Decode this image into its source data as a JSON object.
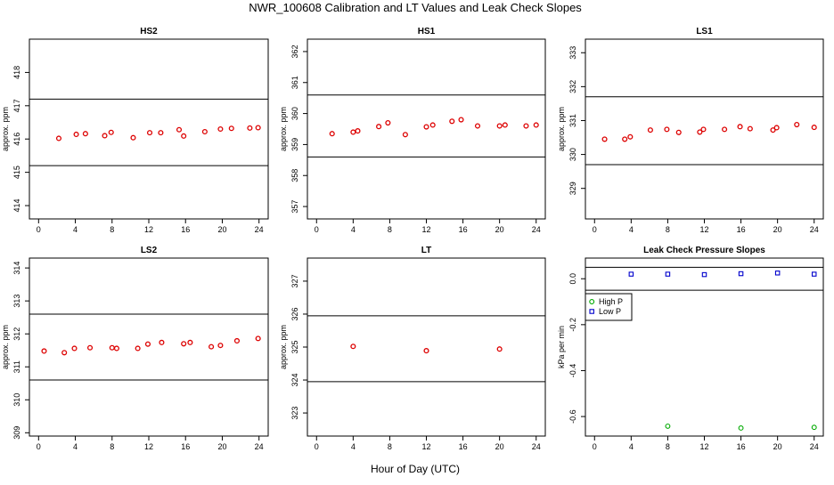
{
  "title": "NWR_100608  Calibration and LT Values and Leak Check Slopes",
  "xlabel": "Hour of Day (UTC)",
  "chart_data": [
    {
      "type": "scatter",
      "title": "HS2",
      "ylabel": "approx. ppm",
      "xlim": [
        -1,
        25
      ],
      "ylim": [
        413.6,
        419
      ],
      "xticks": [
        0,
        4,
        8,
        12,
        16,
        20,
        24
      ],
      "yticks": [
        414,
        415,
        416,
        417,
        418
      ],
      "hlines": [
        417.2,
        415.2
      ],
      "marker_color": "#dd0000",
      "x": [
        2.2,
        4.1,
        5.1,
        7.2,
        7.9,
        10.3,
        12.1,
        13.3,
        15.3,
        15.8,
        18.1,
        19.8,
        21.0,
        23.0,
        23.9
      ],
      "y": [
        416.02,
        416.14,
        416.16,
        416.1,
        416.2,
        416.04,
        416.19,
        416.19,
        416.28,
        416.09,
        416.22,
        416.3,
        416.32,
        416.33,
        416.34
      ]
    },
    {
      "type": "scatter",
      "title": "HS1",
      "ylabel": "approx. ppm",
      "xlim": [
        -1,
        25
      ],
      "ylim": [
        356.6,
        362.4
      ],
      "xticks": [
        0,
        4,
        8,
        12,
        16,
        20,
        24
      ],
      "yticks": [
        357,
        358,
        359,
        360,
        361,
        362
      ],
      "hlines": [
        360.6,
        358.6
      ],
      "marker_color": "#dd0000",
      "x": [
        1.7,
        4.0,
        4.5,
        6.8,
        7.8,
        9.7,
        12.0,
        12.7,
        14.8,
        15.8,
        17.6,
        20.0,
        20.6,
        22.9,
        24.0
      ],
      "y": [
        359.35,
        359.4,
        359.44,
        359.58,
        359.7,
        359.32,
        359.57,
        359.63,
        359.75,
        359.8,
        359.6,
        359.6,
        359.63,
        359.6,
        359.63
      ]
    },
    {
      "type": "scatter",
      "title": "LS1",
      "ylabel": "approx. ppm",
      "xlim": [
        -1,
        25
      ],
      "ylim": [
        328.1,
        333.4
      ],
      "xticks": [
        0,
        4,
        8,
        12,
        16,
        20,
        24
      ],
      "yticks": [
        329,
        330,
        331,
        332,
        333
      ],
      "hlines": [
        331.7,
        329.7
      ],
      "marker_color": "#dd0000",
      "x": [
        1.1,
        3.3,
        3.9,
        6.1,
        7.9,
        9.2,
        11.5,
        11.9,
        14.2,
        15.9,
        17.0,
        19.5,
        19.9,
        22.1,
        24.0
      ],
      "y": [
        330.45,
        330.45,
        330.52,
        330.72,
        330.74,
        330.65,
        330.66,
        330.74,
        330.74,
        330.82,
        330.76,
        330.72,
        330.79,
        330.88,
        330.8
      ]
    },
    {
      "type": "scatter",
      "title": "LS2",
      "ylabel": "approx. ppm",
      "xlim": [
        -1,
        25
      ],
      "ylim": [
        308.9,
        314.3
      ],
      "xticks": [
        0,
        4,
        8,
        12,
        16,
        20,
        24
      ],
      "yticks": [
        309,
        310,
        311,
        312,
        313,
        314
      ],
      "hlines": [
        312.6,
        310.6
      ],
      "marker_color": "#dd0000",
      "x": [
        0.6,
        2.8,
        3.9,
        5.6,
        8.0,
        8.5,
        10.8,
        11.9,
        13.4,
        15.8,
        16.5,
        18.8,
        19.8,
        21.6,
        23.9
      ],
      "y": [
        311.48,
        311.43,
        311.56,
        311.58,
        311.58,
        311.56,
        311.56,
        311.69,
        311.74,
        311.7,
        311.74,
        311.61,
        311.65,
        311.79,
        311.86
      ]
    },
    {
      "type": "scatter",
      "title": "LT",
      "ylabel": "approx. ppm",
      "xlim": [
        -1,
        25
      ],
      "ylim": [
        322.3,
        327.7
      ],
      "xticks": [
        0,
        4,
        8,
        12,
        16,
        20,
        24
      ],
      "yticks": [
        323,
        324,
        325,
        326,
        327
      ],
      "hlines": [
        325.95,
        323.95
      ],
      "marker_color": "#dd0000",
      "x": [
        4.0,
        12.0,
        20.0
      ],
      "y": [
        325.02,
        324.89,
        324.94
      ]
    },
    {
      "type": "scatter",
      "title": "Leak Check Pressure Slopes",
      "ylabel": "kPa per min",
      "xlim": [
        -1,
        25
      ],
      "ylim": [
        -0.685,
        0.09
      ],
      "xticks": [
        0,
        4,
        8,
        12,
        16,
        20,
        24
      ],
      "yticks": [
        0.0,
        -0.2,
        -0.4,
        -0.6
      ],
      "ytick_labels": [
        "0.0",
        "-0.2",
        "-0.4",
        "-0.6"
      ],
      "ytick_rotated": true,
      "hlines": [
        0.05,
        -0.05
      ],
      "legend": {
        "position": "left-middle",
        "entries": [
          "High P",
          "Low P"
        ]
      },
      "series": [
        {
          "name": "High P",
          "marker": "circle",
          "color": "#00aa00",
          "x": [
            8,
            16,
            24
          ],
          "y": [
            -0.642,
            -0.65,
            -0.647
          ]
        },
        {
          "name": "Low P",
          "marker": "square",
          "color": "#0000cc",
          "x": [
            4,
            8,
            12,
            16,
            20,
            24
          ],
          "y": [
            0.02,
            0.02,
            0.018,
            0.022,
            0.025,
            0.02
          ]
        }
      ]
    }
  ]
}
